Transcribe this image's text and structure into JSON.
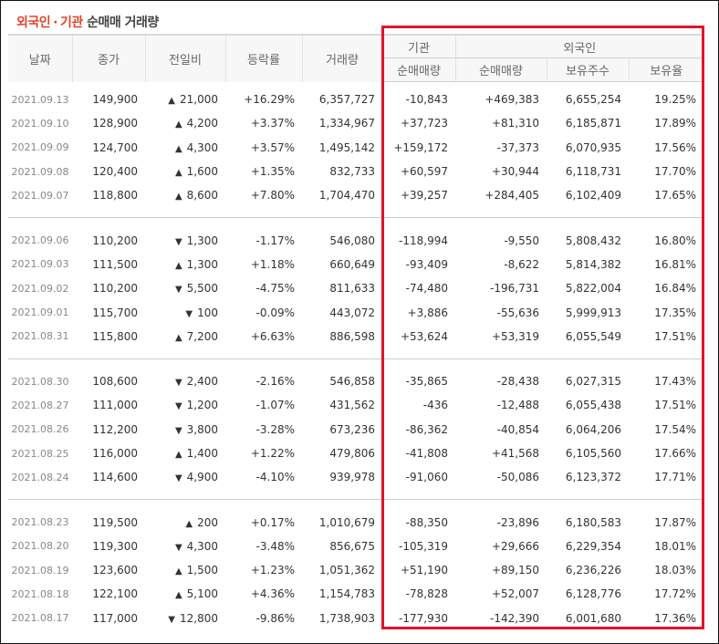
{
  "title": {
    "part1": "외국인",
    "sep": "·",
    "part2": "기관",
    "part3": "순매매 거래량"
  },
  "header": {
    "date": "날짜",
    "close": "종가",
    "change": "전일비",
    "rate": "등락률",
    "volume": "거래량",
    "inst_group": "기관",
    "foreign_group": "외국인",
    "inst_net": "순매매량",
    "foreign_net": "순매매량",
    "foreign_shares": "보유주수",
    "foreign_ratio": "보유율"
  },
  "colors": {
    "up": "#d7282f",
    "down": "#2f6fba",
    "highlight": "#e0142b",
    "title": "#e0442b"
  },
  "icons": {
    "up": "triangle-up-icon",
    "down": "triangle-down-icon"
  },
  "groups": [
    [
      {
        "date": "2021.09.13",
        "close": "149,900",
        "dir": "up",
        "change": "21,000",
        "rate": "+16.29%",
        "volume": "6,357,727",
        "inst": "-10,843",
        "foreign": "+469,383",
        "shares": "6,655,254",
        "ratio": "19.25%"
      },
      {
        "date": "2021.09.10",
        "close": "128,900",
        "dir": "up",
        "change": "4,200",
        "rate": "+3.37%",
        "volume": "1,334,967",
        "inst": "+37,723",
        "foreign": "+81,310",
        "shares": "6,185,871",
        "ratio": "17.89%"
      },
      {
        "date": "2021.09.09",
        "close": "124,700",
        "dir": "up",
        "change": "4,300",
        "rate": "+3.57%",
        "volume": "1,495,142",
        "inst": "+159,172",
        "foreign": "-37,373",
        "shares": "6,070,935",
        "ratio": "17.56%"
      },
      {
        "date": "2021.09.08",
        "close": "120,400",
        "dir": "up",
        "change": "1,600",
        "rate": "+1.35%",
        "volume": "832,733",
        "inst": "+60,597",
        "foreign": "+30,944",
        "shares": "6,118,731",
        "ratio": "17.70%"
      },
      {
        "date": "2021.09.07",
        "close": "118,800",
        "dir": "up",
        "change": "8,600",
        "rate": "+7.80%",
        "volume": "1,704,470",
        "inst": "+39,257",
        "foreign": "+284,405",
        "shares": "6,102,409",
        "ratio": "17.65%"
      }
    ],
    [
      {
        "date": "2021.09.06",
        "close": "110,200",
        "dir": "down",
        "change": "1,300",
        "rate": "-1.17%",
        "volume": "546,080",
        "inst": "-118,994",
        "foreign": "-9,550",
        "shares": "5,808,432",
        "ratio": "16.80%"
      },
      {
        "date": "2021.09.03",
        "close": "111,500",
        "dir": "up",
        "change": "1,300",
        "rate": "+1.18%",
        "volume": "660,649",
        "inst": "-93,409",
        "foreign": "-8,622",
        "shares": "5,814,382",
        "ratio": "16.81%"
      },
      {
        "date": "2021.09.02",
        "close": "110,200",
        "dir": "down",
        "change": "5,500",
        "rate": "-4.75%",
        "volume": "811,633",
        "inst": "-74,480",
        "foreign": "-196,731",
        "shares": "5,822,004",
        "ratio": "16.84%"
      },
      {
        "date": "2021.09.01",
        "close": "115,700",
        "dir": "down",
        "change": "100",
        "rate": "-0.09%",
        "volume": "443,072",
        "inst": "+3,886",
        "foreign": "-55,636",
        "shares": "5,999,913",
        "ratio": "17.35%"
      },
      {
        "date": "2021.08.31",
        "close": "115,800",
        "dir": "up",
        "change": "7,200",
        "rate": "+6.63%",
        "volume": "886,598",
        "inst": "+53,624",
        "foreign": "+53,319",
        "shares": "6,055,549",
        "ratio": "17.51%"
      }
    ],
    [
      {
        "date": "2021.08.30",
        "close": "108,600",
        "dir": "down",
        "change": "2,400",
        "rate": "-2.16%",
        "volume": "546,858",
        "inst": "-35,865",
        "foreign": "-28,438",
        "shares": "6,027,315",
        "ratio": "17.43%"
      },
      {
        "date": "2021.08.27",
        "close": "111,000",
        "dir": "down",
        "change": "1,200",
        "rate": "-1.07%",
        "volume": "431,562",
        "inst": "-436",
        "foreign": "-12,488",
        "shares": "6,055,438",
        "ratio": "17.51%"
      },
      {
        "date": "2021.08.26",
        "close": "112,200",
        "dir": "down",
        "change": "3,800",
        "rate": "-3.28%",
        "volume": "673,236",
        "inst": "-86,362",
        "foreign": "-40,854",
        "shares": "6,064,206",
        "ratio": "17.54%"
      },
      {
        "date": "2021.08.25",
        "close": "116,000",
        "dir": "up",
        "change": "1,400",
        "rate": "+1.22%",
        "volume": "479,806",
        "inst": "-41,808",
        "foreign": "+41,568",
        "shares": "6,105,560",
        "ratio": "17.66%"
      },
      {
        "date": "2021.08.24",
        "close": "114,600",
        "dir": "down",
        "change": "4,900",
        "rate": "-4.10%",
        "volume": "939,978",
        "inst": "-91,060",
        "foreign": "-50,086",
        "shares": "6,123,372",
        "ratio": "17.71%"
      }
    ],
    [
      {
        "date": "2021.08.23",
        "close": "119,500",
        "dir": "up",
        "change": "200",
        "rate": "+0.17%",
        "volume": "1,010,679",
        "inst": "-88,350",
        "foreign": "-23,896",
        "shares": "6,180,583",
        "ratio": "17.87%"
      },
      {
        "date": "2021.08.20",
        "close": "119,300",
        "dir": "down",
        "change": "4,300",
        "rate": "-3.48%",
        "volume": "856,675",
        "inst": "-105,319",
        "foreign": "+29,666",
        "shares": "6,229,354",
        "ratio": "18.01%"
      },
      {
        "date": "2021.08.19",
        "close": "123,600",
        "dir": "up",
        "change": "1,500",
        "rate": "+1.23%",
        "volume": "1,051,362",
        "inst": "+51,190",
        "foreign": "+89,150",
        "shares": "6,236,226",
        "ratio": "18.03%"
      },
      {
        "date": "2021.08.18",
        "close": "122,100",
        "dir": "up",
        "change": "5,100",
        "rate": "+4.36%",
        "volume": "1,154,783",
        "inst": "-78,828",
        "foreign": "+52,007",
        "shares": "6,128,776",
        "ratio": "17.72%"
      },
      {
        "date": "2021.08.17",
        "close": "117,000",
        "dir": "down",
        "change": "12,800",
        "rate": "-9.86%",
        "volume": "1,738,903",
        "inst": "-177,930",
        "foreign": "-142,390",
        "shares": "6,001,680",
        "ratio": "17.36%"
      }
    ]
  ]
}
